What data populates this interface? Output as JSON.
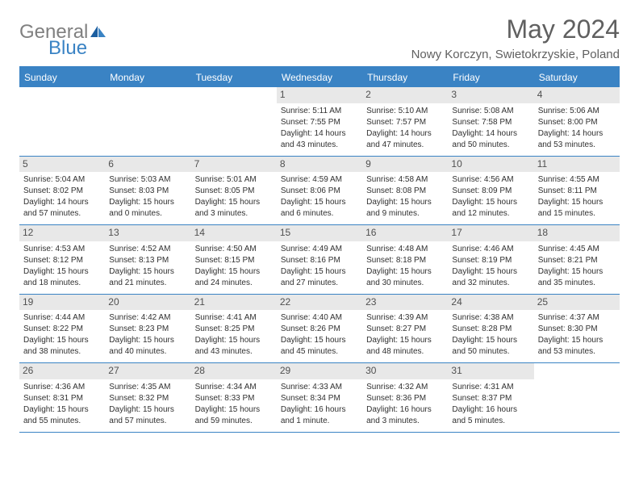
{
  "logo": {
    "word1": "General",
    "word2": "Blue"
  },
  "title": "May 2024",
  "location": "Nowy Korczyn, Swietokrzyskie, Poland",
  "colors": {
    "accent": "#3a83c4",
    "header_bg": "#3a83c4",
    "daynum_bg": "#e8e8e8",
    "text": "#303030",
    "muted": "#606060"
  },
  "dayNames": [
    "Sunday",
    "Monday",
    "Tuesday",
    "Wednesday",
    "Thursday",
    "Friday",
    "Saturday"
  ],
  "weeks": [
    [
      null,
      null,
      null,
      {
        "n": "1",
        "sr": "5:11 AM",
        "ss": "7:55 PM",
        "dl1": "Daylight: 14 hours",
        "dl2": "and 43 minutes."
      },
      {
        "n": "2",
        "sr": "5:10 AM",
        "ss": "7:57 PM",
        "dl1": "Daylight: 14 hours",
        "dl2": "and 47 minutes."
      },
      {
        "n": "3",
        "sr": "5:08 AM",
        "ss": "7:58 PM",
        "dl1": "Daylight: 14 hours",
        "dl2": "and 50 minutes."
      },
      {
        "n": "4",
        "sr": "5:06 AM",
        "ss": "8:00 PM",
        "dl1": "Daylight: 14 hours",
        "dl2": "and 53 minutes."
      }
    ],
    [
      {
        "n": "5",
        "sr": "5:04 AM",
        "ss": "8:02 PM",
        "dl1": "Daylight: 14 hours",
        "dl2": "and 57 minutes."
      },
      {
        "n": "6",
        "sr": "5:03 AM",
        "ss": "8:03 PM",
        "dl1": "Daylight: 15 hours",
        "dl2": "and 0 minutes."
      },
      {
        "n": "7",
        "sr": "5:01 AM",
        "ss": "8:05 PM",
        "dl1": "Daylight: 15 hours",
        "dl2": "and 3 minutes."
      },
      {
        "n": "8",
        "sr": "4:59 AM",
        "ss": "8:06 PM",
        "dl1": "Daylight: 15 hours",
        "dl2": "and 6 minutes."
      },
      {
        "n": "9",
        "sr": "4:58 AM",
        "ss": "8:08 PM",
        "dl1": "Daylight: 15 hours",
        "dl2": "and 9 minutes."
      },
      {
        "n": "10",
        "sr": "4:56 AM",
        "ss": "8:09 PM",
        "dl1": "Daylight: 15 hours",
        "dl2": "and 12 minutes."
      },
      {
        "n": "11",
        "sr": "4:55 AM",
        "ss": "8:11 PM",
        "dl1": "Daylight: 15 hours",
        "dl2": "and 15 minutes."
      }
    ],
    [
      {
        "n": "12",
        "sr": "4:53 AM",
        "ss": "8:12 PM",
        "dl1": "Daylight: 15 hours",
        "dl2": "and 18 minutes."
      },
      {
        "n": "13",
        "sr": "4:52 AM",
        "ss": "8:13 PM",
        "dl1": "Daylight: 15 hours",
        "dl2": "and 21 minutes."
      },
      {
        "n": "14",
        "sr": "4:50 AM",
        "ss": "8:15 PM",
        "dl1": "Daylight: 15 hours",
        "dl2": "and 24 minutes."
      },
      {
        "n": "15",
        "sr": "4:49 AM",
        "ss": "8:16 PM",
        "dl1": "Daylight: 15 hours",
        "dl2": "and 27 minutes."
      },
      {
        "n": "16",
        "sr": "4:48 AM",
        "ss": "8:18 PM",
        "dl1": "Daylight: 15 hours",
        "dl2": "and 30 minutes."
      },
      {
        "n": "17",
        "sr": "4:46 AM",
        "ss": "8:19 PM",
        "dl1": "Daylight: 15 hours",
        "dl2": "and 32 minutes."
      },
      {
        "n": "18",
        "sr": "4:45 AM",
        "ss": "8:21 PM",
        "dl1": "Daylight: 15 hours",
        "dl2": "and 35 minutes."
      }
    ],
    [
      {
        "n": "19",
        "sr": "4:44 AM",
        "ss": "8:22 PM",
        "dl1": "Daylight: 15 hours",
        "dl2": "and 38 minutes."
      },
      {
        "n": "20",
        "sr": "4:42 AM",
        "ss": "8:23 PM",
        "dl1": "Daylight: 15 hours",
        "dl2": "and 40 minutes."
      },
      {
        "n": "21",
        "sr": "4:41 AM",
        "ss": "8:25 PM",
        "dl1": "Daylight: 15 hours",
        "dl2": "and 43 minutes."
      },
      {
        "n": "22",
        "sr": "4:40 AM",
        "ss": "8:26 PM",
        "dl1": "Daylight: 15 hours",
        "dl2": "and 45 minutes."
      },
      {
        "n": "23",
        "sr": "4:39 AM",
        "ss": "8:27 PM",
        "dl1": "Daylight: 15 hours",
        "dl2": "and 48 minutes."
      },
      {
        "n": "24",
        "sr": "4:38 AM",
        "ss": "8:28 PM",
        "dl1": "Daylight: 15 hours",
        "dl2": "and 50 minutes."
      },
      {
        "n": "25",
        "sr": "4:37 AM",
        "ss": "8:30 PM",
        "dl1": "Daylight: 15 hours",
        "dl2": "and 53 minutes."
      }
    ],
    [
      {
        "n": "26",
        "sr": "4:36 AM",
        "ss": "8:31 PM",
        "dl1": "Daylight: 15 hours",
        "dl2": "and 55 minutes."
      },
      {
        "n": "27",
        "sr": "4:35 AM",
        "ss": "8:32 PM",
        "dl1": "Daylight: 15 hours",
        "dl2": "and 57 minutes."
      },
      {
        "n": "28",
        "sr": "4:34 AM",
        "ss": "8:33 PM",
        "dl1": "Daylight: 15 hours",
        "dl2": "and 59 minutes."
      },
      {
        "n": "29",
        "sr": "4:33 AM",
        "ss": "8:34 PM",
        "dl1": "Daylight: 16 hours",
        "dl2": "and 1 minute."
      },
      {
        "n": "30",
        "sr": "4:32 AM",
        "ss": "8:36 PM",
        "dl1": "Daylight: 16 hours",
        "dl2": "and 3 minutes."
      },
      {
        "n": "31",
        "sr": "4:31 AM",
        "ss": "8:37 PM",
        "dl1": "Daylight: 16 hours",
        "dl2": "and 5 minutes."
      },
      null
    ]
  ]
}
